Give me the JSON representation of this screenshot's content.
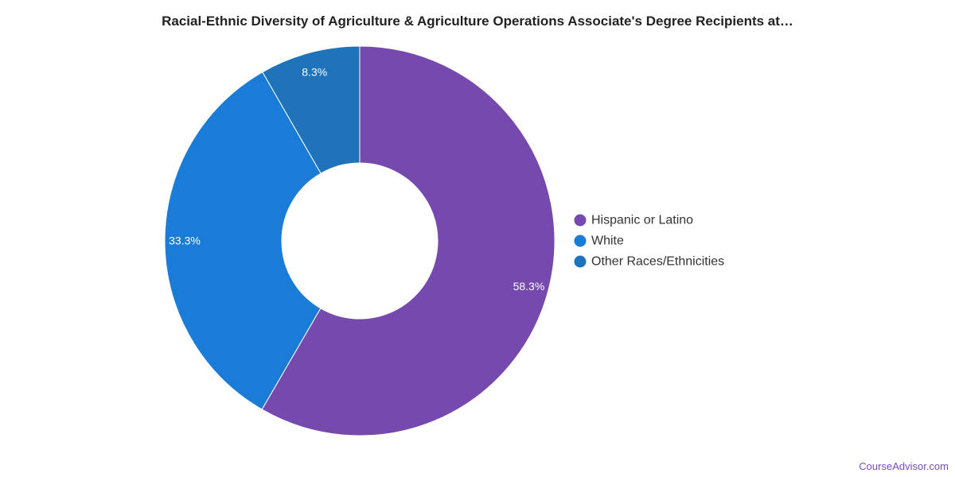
{
  "chart_data": {
    "type": "pie",
    "variant": "donut",
    "title": "Racial-Ethnic Diversity of Agriculture & Agriculture Operations Associate's Degree Recipients at…",
    "categories": [
      "Hispanic or Latino",
      "White",
      "Other Races/Ethnicities"
    ],
    "values": [
      58.3,
      33.3,
      8.3
    ],
    "labels": [
      "58.3%",
      "33.3%",
      "8.3%"
    ],
    "colors": [
      "#7649af",
      "#1a7cd6",
      "#1e73bb"
    ],
    "legend_position": "right",
    "start_angle": "12 o'clock",
    "direction": "clockwise"
  },
  "footer": {
    "watermark": "CourseAdvisor.com"
  }
}
